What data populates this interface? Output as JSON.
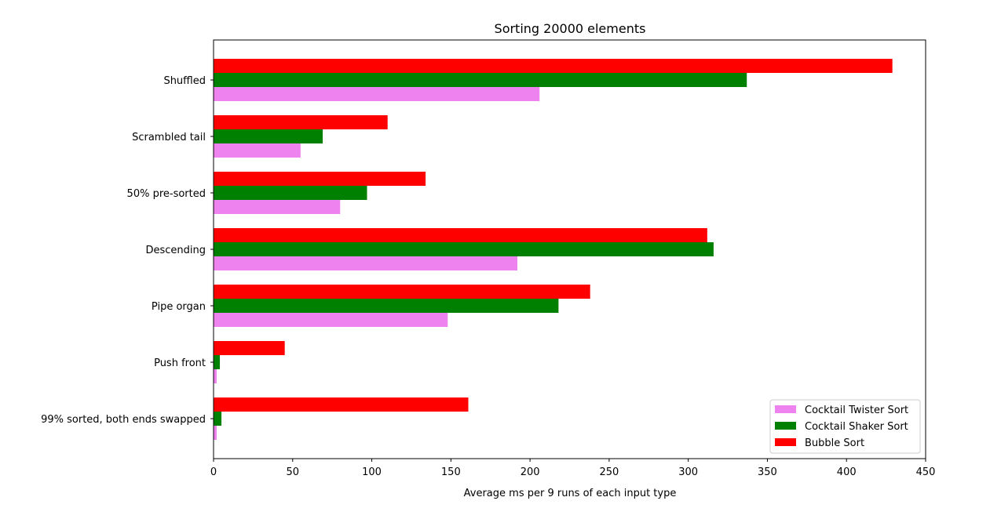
{
  "chart_data": {
    "type": "bar",
    "orientation": "horizontal",
    "title": "Sorting 20000 elements",
    "xlabel": "Average ms per 9 runs of each input type",
    "ylabel": "",
    "xlim": [
      0,
      450
    ],
    "xticks": [
      "0",
      "50",
      "100",
      "150",
      "200",
      "250",
      "300",
      "350",
      "400",
      "450"
    ],
    "categories": [
      "Shuffled",
      "Scrambled tail",
      "50% pre-sorted",
      "Descending",
      "Pipe organ",
      "Push front",
      "99% sorted, both ends swapped"
    ],
    "series": [
      {
        "name": "Cocktail Twister Sort",
        "color": "#ee82ee",
        "values": [
          206,
          55,
          80,
          192,
          148,
          2,
          2
        ]
      },
      {
        "name": "Cocktail Shaker Sort",
        "color": "#008000",
        "values": [
          337,
          69,
          97,
          316,
          218,
          4,
          5
        ]
      },
      {
        "name": "Bubble Sort",
        "color": "#ff0000",
        "values": [
          429,
          110,
          134,
          312,
          238,
          45,
          161
        ]
      }
    ],
    "legend_position": "lower-right",
    "grid": false
  }
}
